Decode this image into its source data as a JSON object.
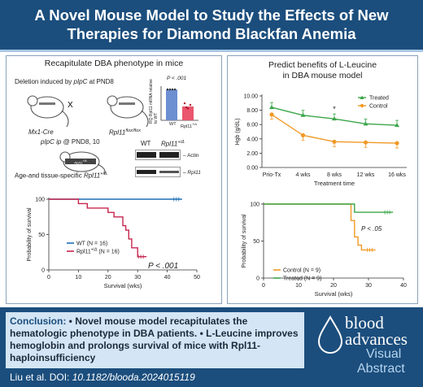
{
  "header": {
    "title_line1": "A Novel Mouse Model to Study the Effects of New",
    "title_line2": "Therapies for Diamond Blackfan Anemia"
  },
  "left_panel": {
    "title": "Recapitulate DBA phenotype in mice",
    "deletion_prefix": "Deletion induced by ",
    "deletion_pipc": "pIpC",
    "deletion_suffix": " at PND8",
    "cross_symbol": "X",
    "mouse1_label": "Mx1-Cre",
    "mouse2_label": "Rpl11",
    "mouse2_sup": "flox/flox",
    "injection_prefix": "pIpC ip",
    "injection_suffix": " @ PND8, 10",
    "result_label_prefix": "Age-and tissue-specific ",
    "result_label_gene": "Rpl11",
    "result_label_sup": "+/Δ",
    "mouse3_label": "Rpl11",
    "mouse3_sup": "+/Δ",
    "mrna_chart": {
      "ylabel": "RQ Rpl11 mRNA relative to WT",
      "pvalue": "P < .001",
      "categories": [
        "WT",
        "Rpl11+/Δ"
      ],
      "wt_label": "WT",
      "mut_label": "Rpl11",
      "mut_sup": "+/Δ",
      "values": [
        1.0,
        0.45
      ]
    },
    "western": {
      "col1": "WT",
      "col2_gene": "Rpl11",
      "col2_sup": "+/Δ",
      "band1": "Actin",
      "band2": "Rpl11"
    }
  },
  "right_panel": {
    "title_line1": "Predict benefits of L-Leucine",
    "title_line2": "in DBA mouse model"
  },
  "chart_data": [
    {
      "type": "line",
      "categories": [
        "Prio-Tx",
        "4 wks",
        "8 wks",
        "12 wks",
        "16 wks"
      ],
      "ylabel": "Hgb (g/dL)",
      "xlabel": "Treatment time",
      "ylim": [
        0,
        10
      ],
      "yticks": [
        "0.00",
        "2.00",
        "4.00",
        "6.00",
        "8.00",
        "10.00"
      ],
      "star": "*",
      "legend_position": "top-right",
      "series": [
        {
          "name": "Treated",
          "color": "#3aa64a",
          "values": [
            8.4,
            7.3,
            6.8,
            6.1,
            5.9
          ]
        },
        {
          "name": "Control",
          "color": "#f09a26",
          "values": [
            7.4,
            4.5,
            3.6,
            3.5,
            3.4
          ]
        }
      ]
    },
    {
      "type": "line",
      "xlabel": "Survival (wks)",
      "ylabel": "Probability of survival",
      "xlim": [
        0,
        50
      ],
      "ylim": [
        0,
        100
      ],
      "xticks": [
        "0",
        "10",
        "20",
        "30",
        "40",
        "50"
      ],
      "yticks": [
        "0",
        "50",
        "100"
      ],
      "pvalue": "P < .001",
      "legend_position": "center-left",
      "series": [
        {
          "name": "WT (N = 16)",
          "color": "#1f6fb5",
          "steps": [
            [
              0,
              100
            ],
            [
              45,
              100
            ]
          ]
        },
        {
          "name": "Rpl11+/Δ (N = 16)",
          "label_gene": "Rpl11",
          "label_sup": "+/Δ",
          "label_n": " (N = 16)",
          "color": "#c8254e",
          "steps": [
            [
              0,
              100
            ],
            [
              10,
              100
            ],
            [
              10,
              93.75
            ],
            [
              13,
              93.75
            ],
            [
              13,
              87.5
            ],
            [
              20,
              87.5
            ],
            [
              20,
              81.25
            ],
            [
              22,
              81.25
            ],
            [
              22,
              75
            ],
            [
              25,
              75
            ],
            [
              25,
              62.5
            ],
            [
              26,
              62.5
            ],
            [
              26,
              56.25
            ],
            [
              27,
              56.25
            ],
            [
              27,
              43.75
            ],
            [
              28,
              43.75
            ],
            [
              28,
              31.25
            ],
            [
              30,
              31.25
            ],
            [
              30,
              18.75
            ],
            [
              33,
              18.75
            ]
          ]
        }
      ]
    },
    {
      "type": "line",
      "xlabel": "Survival (wks)",
      "ylabel": "Probability of survival",
      "xlim": [
        0,
        40
      ],
      "ylim": [
        0,
        100
      ],
      "xticks": [
        "0",
        "10",
        "20",
        "30",
        "40"
      ],
      "yticks": [
        "0",
        "50",
        "100"
      ],
      "pvalue": "P < .05",
      "legend_position": "bottom-left",
      "series": [
        {
          "name": "Control (N = 9)",
          "color": "#f09a26",
          "steps": [
            [
              0,
              100
            ],
            [
              25,
              100
            ],
            [
              25,
              77.8
            ],
            [
              26,
              77.8
            ],
            [
              26,
              55.6
            ],
            [
              27,
              55.6
            ],
            [
              27,
              44.4
            ],
            [
              28,
              44.4
            ],
            [
              28,
              38
            ],
            [
              32,
              38
            ]
          ]
        },
        {
          "name": "Treated (N = 9)",
          "color": "#3aa64a",
          "steps": [
            [
              0,
              100
            ],
            [
              26,
              100
            ],
            [
              26,
              88.9
            ],
            [
              37,
              88.9
            ]
          ]
        }
      ]
    }
  ],
  "conclusion": {
    "heading": "Conclusion:",
    "bullet": "•",
    "point1": "Novel mouse model recapitulates the hematologic phenotype in DBA patients.",
    "point2": "L-Leucine improves hemoglobin and prolongs survival of mice with Rpl11-haploinsufficiency"
  },
  "citation": {
    "authors": "Liu et al. DOI: ",
    "doi": "10.1182/blooda.2024015119"
  },
  "logo": {
    "blood": "blood",
    "advances": "advances",
    "visual": "Visual",
    "abstract": "Abstract"
  },
  "colors": {
    "banner": "#1b4e7d",
    "conclusion_bg": "#d4e5f5",
    "treated": "#3aa64a",
    "control": "#f09a26",
    "wt": "#1f6fb5",
    "mutant": "#c8254e"
  }
}
